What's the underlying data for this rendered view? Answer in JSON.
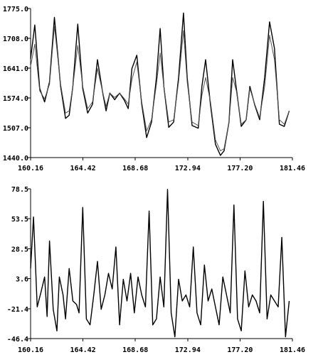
{
  "chart_data": [
    {
      "type": "line",
      "title": "",
      "xlabel": "",
      "ylabel": "",
      "xlim": [
        160.16,
        181.46
      ],
      "ylim": [
        1440.0,
        1775.0
      ],
      "x_ticks": [
        "160.16",
        "164.42",
        "168.68",
        "172.94",
        "177.20",
        "181.46"
      ],
      "y_ticks": [
        "1775.0",
        "1708.0",
        "1641.0",
        "1574.0",
        "1507.0",
        "1440.0"
      ],
      "grid": false,
      "legend": "none",
      "series": [
        {
          "x": [
            160.16,
            160.5,
            160.9,
            161.3,
            161.7,
            162.1,
            162.6,
            163.0,
            163.3,
            163.6,
            164.0,
            164.4,
            164.8,
            165.2,
            165.6,
            166.0,
            166.3,
            166.6,
            167.0,
            167.4,
            167.8,
            168.1,
            168.4,
            168.8,
            169.2,
            169.6,
            170.0,
            170.4,
            170.7,
            171.0,
            171.4,
            171.8,
            172.2,
            172.6,
            172.9,
            173.3,
            173.8,
            174.1,
            174.4,
            174.8,
            175.2,
            175.6,
            175.9,
            176.3,
            176.6,
            176.9,
            177.3,
            177.7,
            178.0,
            178.4,
            178.8,
            179.2,
            179.6,
            180.0,
            180.4,
            180.8,
            181.2
          ],
          "values": [
            1662,
            1738,
            1595,
            1565,
            1610,
            1755,
            1600,
            1528,
            1535,
            1600,
            1740,
            1595,
            1540,
            1560,
            1660,
            1590,
            1545,
            1585,
            1570,
            1585,
            1568,
            1550,
            1640,
            1670,
            1560,
            1485,
            1520,
            1620,
            1730,
            1600,
            1508,
            1520,
            1620,
            1765,
            1620,
            1512,
            1506,
            1600,
            1660,
            1558,
            1470,
            1445,
            1455,
            1520,
            1660,
            1595,
            1510,
            1525,
            1600,
            1558,
            1525,
            1620,
            1745,
            1685,
            1515,
            1510,
            1545
          ]
        },
        {
          "x": [
            160.16,
            160.5,
            160.9,
            161.3,
            161.7,
            162.1,
            162.6,
            163.0,
            163.3,
            163.6,
            164.0,
            164.4,
            164.8,
            165.2,
            165.6,
            166.0,
            166.3,
            166.6,
            167.0,
            167.4,
            167.8,
            168.1,
            168.4,
            168.8,
            169.2,
            169.6,
            170.0,
            170.4,
            170.7,
            171.0,
            171.4,
            171.8,
            172.2,
            172.6,
            172.9,
            173.3,
            173.8,
            174.1,
            174.4,
            174.8,
            175.2,
            175.6,
            175.9,
            176.3,
            176.6,
            176.9,
            177.3,
            177.7,
            178.0,
            178.4,
            178.8,
            179.2,
            179.6,
            180.0,
            180.4,
            180.8,
            181.2
          ],
          "values": [
            1645,
            1695,
            1590,
            1572,
            1605,
            1735,
            1605,
            1540,
            1545,
            1600,
            1692,
            1600,
            1550,
            1565,
            1640,
            1590,
            1555,
            1585,
            1575,
            1585,
            1572,
            1560,
            1615,
            1655,
            1565,
            1500,
            1525,
            1605,
            1675,
            1600,
            1520,
            1525,
            1610,
            1725,
            1610,
            1520,
            1512,
            1580,
            1620,
            1565,
            1480,
            1455,
            1460,
            1520,
            1620,
            1590,
            1515,
            1525,
            1595,
            1560,
            1530,
            1600,
            1715,
            1660,
            1525,
            1515,
            1545
          ]
        }
      ]
    },
    {
      "type": "line",
      "title": "",
      "xlabel": "",
      "ylabel": "",
      "xlim": [
        160.16,
        181.46
      ],
      "ylim": [
        -46.4,
        78.5
      ],
      "x_ticks": [
        "160.16",
        "164.42",
        "168.68",
        "172.94",
        "177.20",
        "181.46"
      ],
      "y_ticks": [
        "78.5",
        "53.5",
        "28.5",
        "3.6",
        "-21.4",
        "-46.4"
      ],
      "grid": false,
      "legend": "none",
      "series": [
        {
          "x": [
            160.16,
            160.4,
            160.7,
            161.0,
            161.3,
            161.5,
            161.7,
            162.0,
            162.3,
            162.5,
            162.8,
            163.0,
            163.3,
            163.6,
            163.9,
            164.1,
            164.4,
            164.7,
            165.0,
            165.3,
            165.6,
            165.9,
            166.2,
            166.5,
            166.8,
            167.1,
            167.4,
            167.7,
            168.0,
            168.3,
            168.6,
            168.9,
            169.2,
            169.5,
            169.8,
            170.1,
            170.4,
            170.7,
            171.0,
            171.3,
            171.6,
            171.9,
            172.2,
            172.5,
            172.8,
            173.1,
            173.4,
            173.7,
            174.0,
            174.3,
            174.6,
            174.9,
            175.2,
            175.5,
            175.8,
            176.1,
            176.4,
            176.7,
            177.0,
            177.3,
            177.6,
            177.9,
            178.2,
            178.5,
            178.8,
            179.1,
            179.4,
            179.7,
            180.0,
            180.3,
            180.6,
            180.9,
            181.2
          ],
          "values": [
            12,
            55,
            -20,
            -8,
            5,
            -28,
            35,
            -22,
            -40,
            5,
            -10,
            -30,
            12,
            -15,
            -18,
            -25,
            63,
            -30,
            -35,
            -10,
            18,
            -22,
            -10,
            8,
            -5,
            30,
            -35,
            3,
            -15,
            8,
            -25,
            5,
            -10,
            -20,
            60,
            -35,
            -30,
            5,
            -20,
            78,
            -25,
            -45,
            3,
            -15,
            -10,
            -20,
            30,
            -25,
            -35,
            15,
            -15,
            -5,
            -20,
            -35,
            5,
            -10,
            -25,
            65,
            -30,
            -40,
            10,
            -20,
            -10,
            -15,
            -25,
            68,
            -30,
            -10,
            -15,
            -20,
            38,
            -45,
            -15
          ]
        }
      ]
    }
  ]
}
